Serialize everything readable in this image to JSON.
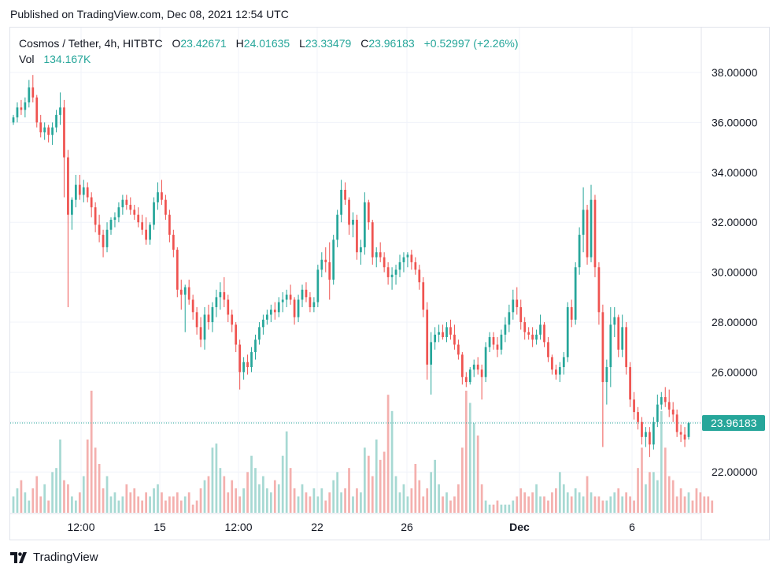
{
  "header": {
    "published": "Published on TradingView.com, Dec 08, 2021 12:54 UTC"
  },
  "legend": {
    "symbol": "Cosmos / Tether, 4h, HITBTC",
    "o_label": "O",
    "o": "23.42671",
    "h_label": "H",
    "h": "24.01635",
    "l_label": "L",
    "l": "23.33479",
    "c_label": "C",
    "c": "23.96183",
    "change": "+0.52997 (+2.26%)",
    "vol_label": "Vol",
    "vol": "134.167K"
  },
  "footer": {
    "brand": "TradingView"
  },
  "colors": {
    "up": "#26a69a",
    "down": "#ef5350",
    "up_vol": "#a7d9d3",
    "down_vol": "#f4b0ae",
    "grid": "#f0f3fa",
    "axis_text": "#131722"
  },
  "chart_data": {
    "type": "candlestick",
    "y_ticks": [
      22,
      24,
      26,
      28,
      30,
      32,
      34,
      36,
      38
    ],
    "y_tick_labels": [
      "22.00000",
      "26.00000",
      "28.00000",
      "30.00000",
      "32.00000",
      "34.00000",
      "36.00000",
      "38.00000"
    ],
    "x_tick_labels": [
      "12:00",
      "15",
      "12:00",
      "22",
      "26",
      "Dec",
      "6"
    ],
    "last_price": 23.96183,
    "last_price_label": "23.96183",
    "ylim": [
      20.2,
      39.5
    ],
    "candles": [
      [
        36.0,
        36.3,
        35.9,
        36.2
      ],
      [
        36.2,
        36.8,
        36.0,
        36.6
      ],
      [
        36.6,
        36.9,
        36.3,
        36.5
      ],
      [
        36.5,
        37.0,
        36.2,
        36.8
      ],
      [
        36.8,
        37.7,
        36.6,
        37.4
      ],
      [
        37.4,
        37.9,
        36.8,
        37.0
      ],
      [
        37.0,
        37.1,
        35.8,
        36.0
      ],
      [
        36.0,
        36.3,
        35.4,
        35.6
      ],
      [
        35.6,
        36.0,
        35.3,
        35.8
      ],
      [
        35.8,
        35.9,
        35.2,
        35.5
      ],
      [
        35.5,
        36.0,
        35.1,
        35.8
      ],
      [
        35.8,
        36.5,
        35.6,
        36.3
      ],
      [
        36.3,
        37.2,
        35.9,
        36.6
      ],
      [
        36.6,
        36.9,
        33.0,
        34.6
      ],
      [
        34.6,
        34.9,
        28.6,
        32.3
      ],
      [
        32.3,
        33.0,
        31.7,
        32.9
      ],
      [
        32.9,
        33.9,
        32.6,
        33.5
      ],
      [
        33.5,
        33.9,
        32.9,
        33.1
      ],
      [
        33.1,
        33.7,
        32.8,
        33.4
      ],
      [
        33.4,
        33.6,
        32.8,
        33.0
      ],
      [
        33.0,
        33.2,
        32.2,
        32.6
      ],
      [
        32.6,
        32.8,
        31.6,
        31.9
      ],
      [
        31.9,
        32.3,
        31.2,
        31.5
      ],
      [
        31.5,
        31.7,
        30.6,
        31.0
      ],
      [
        31.0,
        32.0,
        30.8,
        31.7
      ],
      [
        31.7,
        32.2,
        31.5,
        32.1
      ],
      [
        32.1,
        32.4,
        31.8,
        32.2
      ],
      [
        32.2,
        32.8,
        32.0,
        32.6
      ],
      [
        32.6,
        33.1,
        32.3,
        32.9
      ],
      [
        32.9,
        33.1,
        32.5,
        32.7
      ],
      [
        32.7,
        33.0,
        32.3,
        32.5
      ],
      [
        32.5,
        32.7,
        32.1,
        32.3
      ],
      [
        32.3,
        32.6,
        31.8,
        32.0
      ],
      [
        32.0,
        32.3,
        31.5,
        31.7
      ],
      [
        31.7,
        32.2,
        31.1,
        31.3
      ],
      [
        31.3,
        32.0,
        31.1,
        31.9
      ],
      [
        31.9,
        33.0,
        31.7,
        32.8
      ],
      [
        32.8,
        33.6,
        32.5,
        33.2
      ],
      [
        33.2,
        33.7,
        32.7,
        32.9
      ],
      [
        32.9,
        33.1,
        32.1,
        32.3
      ],
      [
        32.3,
        32.5,
        31.2,
        31.5
      ],
      [
        31.5,
        31.7,
        30.6,
        30.9
      ],
      [
        30.9,
        31.0,
        29.0,
        29.3
      ],
      [
        29.3,
        29.7,
        28.5,
        29.1
      ],
      [
        29.1,
        29.5,
        27.6,
        29.4
      ],
      [
        29.4,
        29.7,
        28.7,
        28.9
      ],
      [
        28.9,
        29.1,
        28.1,
        28.4
      ],
      [
        28.4,
        28.6,
        27.5,
        27.8
      ],
      [
        27.8,
        28.2,
        27.0,
        27.3
      ],
      [
        27.3,
        28.6,
        26.9,
        28.3
      ],
      [
        28.3,
        28.7,
        27.7,
        28.0
      ],
      [
        28.0,
        28.8,
        27.6,
        28.6
      ],
      [
        28.6,
        29.3,
        28.2,
        29.0
      ],
      [
        29.0,
        29.6,
        28.5,
        29.2
      ],
      [
        29.2,
        29.8,
        28.6,
        28.9
      ],
      [
        28.9,
        29.1,
        28.0,
        28.3
      ],
      [
        28.3,
        28.5,
        27.6,
        27.9
      ],
      [
        27.9,
        28.0,
        26.8,
        27.1
      ],
      [
        27.1,
        27.3,
        25.3,
        26.0
      ],
      [
        26.0,
        26.6,
        25.7,
        26.4
      ],
      [
        26.4,
        26.7,
        25.9,
        26.2
      ],
      [
        26.2,
        27.0,
        26.0,
        26.8
      ],
      [
        26.8,
        27.5,
        26.5,
        27.3
      ],
      [
        27.3,
        28.0,
        27.1,
        27.8
      ],
      [
        27.8,
        28.3,
        27.5,
        28.1
      ],
      [
        28.1,
        28.5,
        27.9,
        28.3
      ],
      [
        28.3,
        28.7,
        28.0,
        28.5
      ],
      [
        28.5,
        28.8,
        28.1,
        28.4
      ],
      [
        28.4,
        29.0,
        28.2,
        28.8
      ],
      [
        28.8,
        29.2,
        28.4,
        28.9
      ],
      [
        28.9,
        29.3,
        28.6,
        29.1
      ],
      [
        29.1,
        29.5,
        28.7,
        28.9
      ],
      [
        28.9,
        29.0,
        27.9,
        28.2
      ],
      [
        28.2,
        29.1,
        28.0,
        28.9
      ],
      [
        28.9,
        29.5,
        28.6,
        29.3
      ],
      [
        29.3,
        29.6,
        28.8,
        29.0
      ],
      [
        29.0,
        29.2,
        28.4,
        28.6
      ],
      [
        28.6,
        29.0,
        28.4,
        28.8
      ],
      [
        28.8,
        30.3,
        28.6,
        30.1
      ],
      [
        30.1,
        30.8,
        29.8,
        30.5
      ],
      [
        30.5,
        31.0,
        30.0,
        30.4
      ],
      [
        30.4,
        31.2,
        28.9,
        29.7
      ],
      [
        29.7,
        31.5,
        29.5,
        31.3
      ],
      [
        31.3,
        32.5,
        31.0,
        32.3
      ],
      [
        32.3,
        33.7,
        32.0,
        33.3
      ],
      [
        33.3,
        33.6,
        32.7,
        32.9
      ],
      [
        32.9,
        33.0,
        31.5,
        31.9
      ],
      [
        31.9,
        32.4,
        31.4,
        32.1
      ],
      [
        32.1,
        32.3,
        30.5,
        30.8
      ],
      [
        30.8,
        31.3,
        30.3,
        31.0
      ],
      [
        31.0,
        33.2,
        30.7,
        32.8
      ],
      [
        32.8,
        32.9,
        31.7,
        32.0
      ],
      [
        32.0,
        32.1,
        30.3,
        30.6
      ],
      [
        30.6,
        31.0,
        30.2,
        30.8
      ],
      [
        30.8,
        31.2,
        30.4,
        30.6
      ],
      [
        30.6,
        30.8,
        30.0,
        30.2
      ],
      [
        30.2,
        30.4,
        29.5,
        29.8
      ],
      [
        29.8,
        30.2,
        29.3,
        29.9
      ],
      [
        29.9,
        30.3,
        29.5,
        30.1
      ],
      [
        30.1,
        30.7,
        29.8,
        30.4
      ],
      [
        30.4,
        30.8,
        30.0,
        30.6
      ],
      [
        30.6,
        30.8,
        30.2,
        30.7
      ],
      [
        30.7,
        30.9,
        30.1,
        30.4
      ],
      [
        30.4,
        30.6,
        29.9,
        30.1
      ],
      [
        30.1,
        30.3,
        29.3,
        29.6
      ],
      [
        29.6,
        29.8,
        28.2,
        28.5
      ],
      [
        28.5,
        28.8,
        25.7,
        26.3
      ],
      [
        26.3,
        27.6,
        25.1,
        27.2
      ],
      [
        27.2,
        27.8,
        26.9,
        27.5
      ],
      [
        27.5,
        27.9,
        27.2,
        27.6
      ],
      [
        27.6,
        27.9,
        27.3,
        27.4
      ],
      [
        27.4,
        28.0,
        27.2,
        27.8
      ],
      [
        27.8,
        28.1,
        27.3,
        27.5
      ],
      [
        27.5,
        27.9,
        26.9,
        27.1
      ],
      [
        27.1,
        27.3,
        26.5,
        26.7
      ],
      [
        26.7,
        26.8,
        25.5,
        25.8
      ],
      [
        25.8,
        26.0,
        25.4,
        25.6
      ],
      [
        25.6,
        26.2,
        25.5,
        26.1
      ],
      [
        26.1,
        26.5,
        25.8,
        26.3
      ],
      [
        26.3,
        26.6,
        25.9,
        26.1
      ],
      [
        26.1,
        26.3,
        24.9,
        25.8
      ],
      [
        25.8,
        27.2,
        25.6,
        27.0
      ],
      [
        27.0,
        27.6,
        26.8,
        27.4
      ],
      [
        27.4,
        27.6,
        26.9,
        27.1
      ],
      [
        27.1,
        27.4,
        26.6,
        26.9
      ],
      [
        26.9,
        27.7,
        26.7,
        27.5
      ],
      [
        27.5,
        28.2,
        27.2,
        27.9
      ],
      [
        27.9,
        28.7,
        27.6,
        28.4
      ],
      [
        28.4,
        29.3,
        28.1,
        28.9
      ],
      [
        28.9,
        29.4,
        28.3,
        28.6
      ],
      [
        28.6,
        28.9,
        27.7,
        28.0
      ],
      [
        28.0,
        28.2,
        27.3,
        27.6
      ],
      [
        27.6,
        27.8,
        27.3,
        27.5
      ],
      [
        27.5,
        27.8,
        27.0,
        27.3
      ],
      [
        27.3,
        27.7,
        27.1,
        27.5
      ],
      [
        27.5,
        28.3,
        27.3,
        27.9
      ],
      [
        27.9,
        28.0,
        27.0,
        27.2
      ],
      [
        27.2,
        27.4,
        26.4,
        26.6
      ],
      [
        26.6,
        26.7,
        25.9,
        26.1
      ],
      [
        26.1,
        26.3,
        25.7,
        25.9
      ],
      [
        25.9,
        26.4,
        25.6,
        26.2
      ],
      [
        26.2,
        26.8,
        25.9,
        26.6
      ],
      [
        26.6,
        28.8,
        26.4,
        28.6
      ],
      [
        28.6,
        28.9,
        27.8,
        28.1
      ],
      [
        28.1,
        30.4,
        27.9,
        30.2
      ],
      [
        30.2,
        31.8,
        29.9,
        31.5
      ],
      [
        31.5,
        33.4,
        30.8,
        32.5
      ],
      [
        32.5,
        32.7,
        30.3,
        30.6
      ],
      [
        30.6,
        33.5,
        30.4,
        32.9
      ],
      [
        32.9,
        33.1,
        29.8,
        30.2
      ],
      [
        30.2,
        30.4,
        27.9,
        28.4
      ],
      [
        28.4,
        28.7,
        23.0,
        25.6
      ],
      [
        25.6,
        26.5,
        24.7,
        26.2
      ],
      [
        26.2,
        28.6,
        25.4,
        27.9
      ],
      [
        27.9,
        28.6,
        27.4,
        28.2
      ],
      [
        28.2,
        28.3,
        26.6,
        26.9
      ],
      [
        26.9,
        28.3,
        26.6,
        27.8
      ],
      [
        27.8,
        28.0,
        25.9,
        26.2
      ],
      [
        26.2,
        26.4,
        24.6,
        24.9
      ],
      [
        24.9,
        25.2,
        24.1,
        24.4
      ],
      [
        24.4,
        24.6,
        23.7,
        24.0
      ],
      [
        24.0,
        24.2,
        23.1,
        23.4
      ],
      [
        23.4,
        23.8,
        23.0,
        23.6
      ],
      [
        23.6,
        23.8,
        22.6,
        23.1
      ],
      [
        23.1,
        24.2,
        22.9,
        24.0
      ],
      [
        24.0,
        25.1,
        23.8,
        24.7
      ],
      [
        24.7,
        25.2,
        24.5,
        25.0
      ],
      [
        25.0,
        25.4,
        24.6,
        24.8
      ],
      [
        24.8,
        25.3,
        24.2,
        24.5
      ],
      [
        24.5,
        24.8,
        24.0,
        24.3
      ],
      [
        24.3,
        24.5,
        23.4,
        23.6
      ],
      [
        23.6,
        23.9,
        23.2,
        23.5
      ],
      [
        23.5,
        23.8,
        23.0,
        23.3
      ],
      [
        23.4,
        24.0,
        23.3,
        23.96
      ]
    ],
    "volumes": [
      4,
      6,
      8,
      5,
      3,
      6,
      9,
      4,
      7,
      3,
      10,
      11,
      18,
      8,
      7,
      4,
      3,
      5,
      9,
      18,
      30,
      16,
      12,
      6,
      9,
      4,
      5,
      3,
      4,
      7,
      5,
      6,
      4,
      3,
      5,
      4,
      6,
      7,
      5,
      3,
      4,
      4,
      5,
      3,
      4,
      5,
      2,
      3,
      6,
      8,
      9,
      16,
      17,
      11,
      9,
      5,
      8,
      6,
      4,
      6,
      10,
      14,
      11,
      7,
      9,
      6,
      5,
      8,
      7,
      14,
      20,
      11,
      6,
      4,
      7,
      5,
      4,
      6,
      4,
      6,
      3,
      5,
      8,
      10,
      5,
      6,
      11,
      4,
      6,
      5,
      16,
      14,
      9,
      18,
      13,
      15,
      29,
      25,
      9,
      5,
      7,
      4,
      6,
      12,
      8,
      4,
      6,
      10,
      13,
      7,
      4,
      5,
      3,
      4,
      7,
      16,
      30,
      27,
      22,
      19,
      7,
      3,
      2,
      2,
      3,
      2,
      2,
      2,
      3,
      4,
      6,
      5,
      4,
      5,
      7,
      4,
      4,
      3,
      5,
      6,
      10,
      7,
      5,
      4,
      6,
      5,
      4,
      9,
      5,
      4,
      4,
      3,
      3,
      4,
      5,
      6,
      4,
      5,
      4,
      3,
      11,
      16,
      7,
      10,
      10,
      8,
      25,
      16,
      9,
      8,
      4,
      6,
      4,
      5,
      3,
      6,
      5,
      4,
      4,
      3
    ],
    "volume_colors_follow_candles": true
  }
}
